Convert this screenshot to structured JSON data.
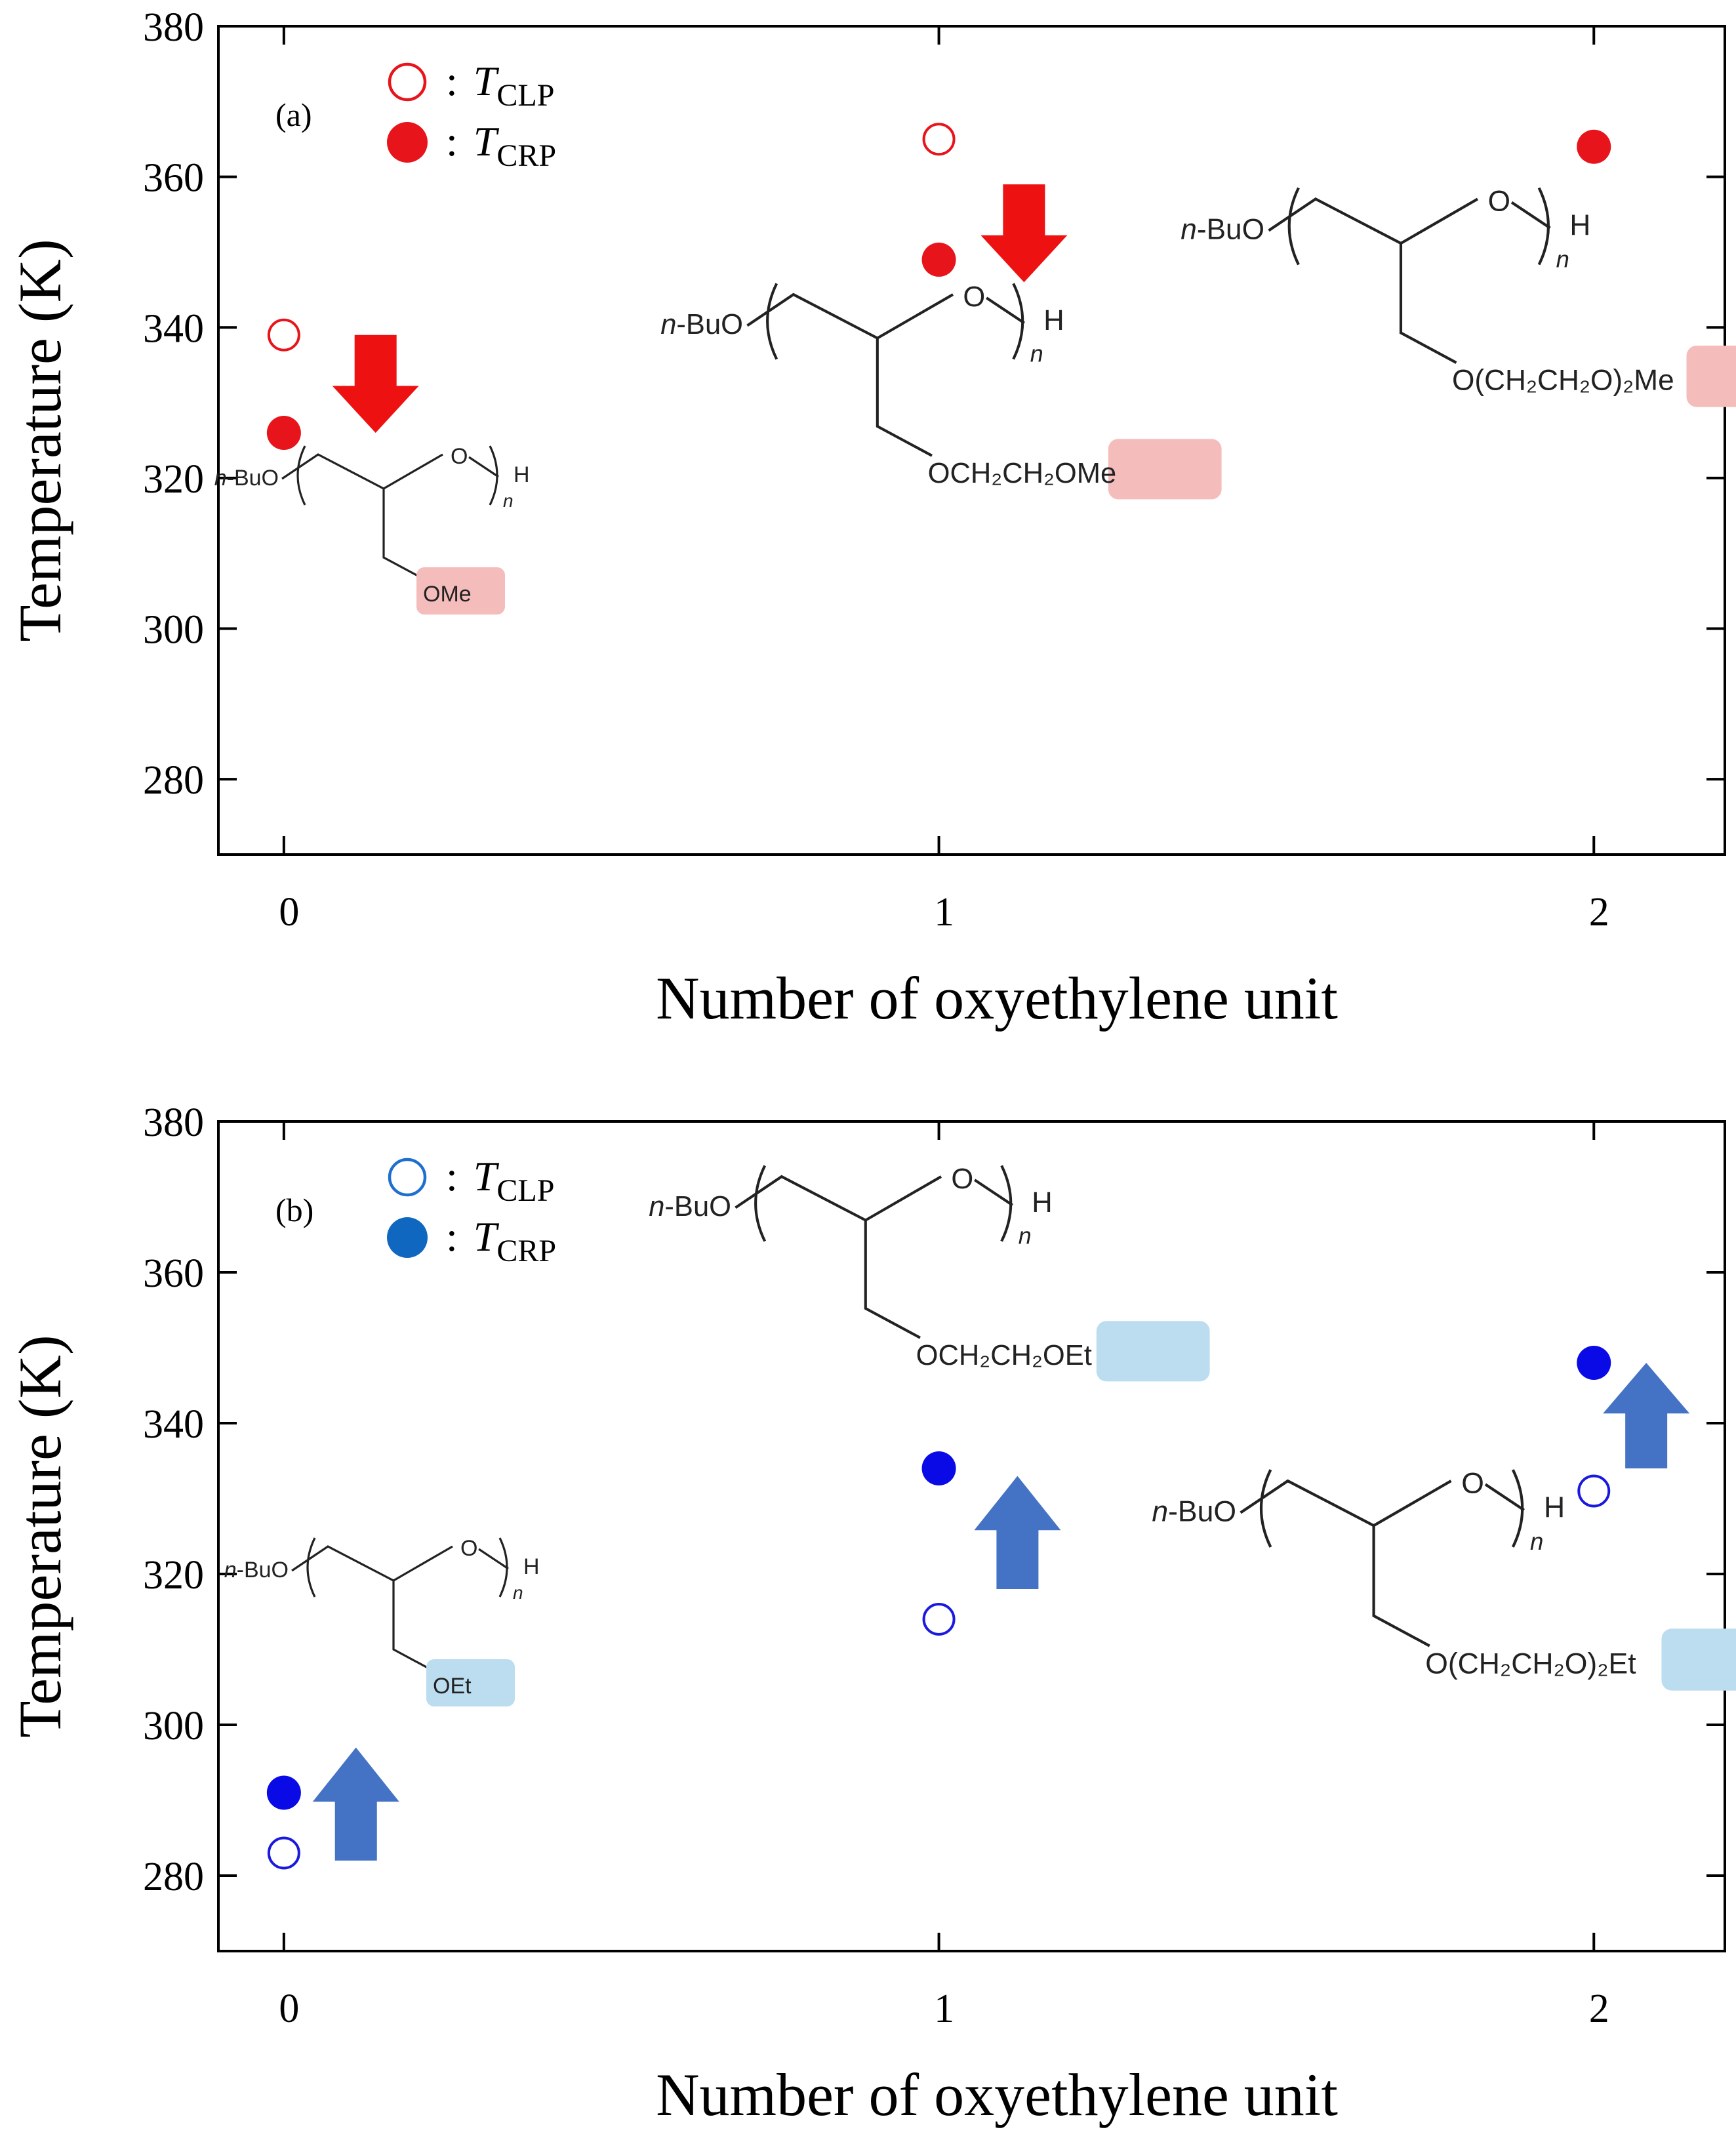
{
  "chart_data": [
    {
      "type": "scatter",
      "panel_label": "(a)",
      "xlabel": "Number of oxyethylene unit",
      "ylabel": "Temperature (K)",
      "xlim": [
        -0.1,
        2.2
      ],
      "ylim": [
        270,
        380
      ],
      "x_ticks": [
        "0",
        "1",
        "2"
      ],
      "y_ticks": [
        "280",
        "300",
        "320",
        "340",
        "360",
        "380"
      ],
      "legend": [
        {
          "marker": "open",
          "sep": ":",
          "symbol": "T",
          "sub": "CLP"
        },
        {
          "marker": "filled",
          "sep": ":",
          "symbol": "T",
          "sub": "CRP"
        }
      ],
      "series": [
        {
          "name": "T_CLP",
          "marker": "open",
          "color": "#e8141b",
          "x": [
            0,
            1
          ],
          "y": [
            339,
            365
          ]
        },
        {
          "name": "T_CRP",
          "marker": "filled",
          "color": "#e8141b",
          "x": [
            0,
            1,
            2
          ],
          "y": [
            326,
            349,
            364
          ]
        }
      ],
      "arrows": [
        {
          "x": 0.14,
          "y_top": 339,
          "y_bottom": 326,
          "direction": "down",
          "color": "#ee1111"
        },
        {
          "x": 1.13,
          "y_top": 359,
          "y_bottom": 346,
          "direction": "down",
          "color": "#ee1111"
        }
      ],
      "structures": [
        {
          "x": 0,
          "prefix": "n",
          "prefix_rest": "-BuO",
          "ring_o": "O",
          "end_h": "H",
          "repeat": "n",
          "side_chain": "OMe",
          "highlight": "#f5bcbc"
        },
        {
          "x": 1,
          "prefix": "n",
          "prefix_rest": "-BuO",
          "ring_o": "O",
          "end_h": "H",
          "repeat": "n",
          "side_chain": "OCH₂CH₂OMe",
          "highlight": "#f5bcbc"
        },
        {
          "x": 2,
          "prefix": "n",
          "prefix_rest": "-BuO",
          "ring_o": "O",
          "end_h": "H",
          "repeat": "n",
          "side_chain": "O(CH₂CH₂O)₂Me",
          "highlight": "#f5bcbc"
        }
      ]
    },
    {
      "type": "scatter",
      "panel_label": "(b)",
      "xlabel": "Number of oxyethylene unit",
      "ylabel": "Temperature (K)",
      "xlim": [
        -0.1,
        2.2
      ],
      "ylim": [
        270,
        380
      ],
      "x_ticks": [
        "0",
        "1",
        "2"
      ],
      "y_ticks": [
        "280",
        "300",
        "320",
        "340",
        "360",
        "380"
      ],
      "legend": [
        {
          "marker": "open",
          "sep": ":",
          "symbol": "T",
          "sub": "CLP",
          "color": "#1f6fd0"
        },
        {
          "marker": "filled",
          "sep": ":",
          "symbol": "T",
          "sub": "CRP",
          "color": "#1067c0"
        }
      ],
      "series": [
        {
          "name": "T_CLP",
          "marker": "open",
          "color": "#1a1adf",
          "x": [
            0,
            1,
            2
          ],
          "y": [
            283,
            314,
            331
          ]
        },
        {
          "name": "T_CRP",
          "marker": "filled",
          "color": "#0a0ae6",
          "x": [
            0,
            1,
            2
          ],
          "y": [
            291,
            334,
            348
          ]
        }
      ],
      "arrows": [
        {
          "x": 0.11,
          "y_top": 297,
          "y_bottom": 282,
          "direction": "up",
          "color": "#4472c4"
        },
        {
          "x": 1.12,
          "y_top": 333,
          "y_bottom": 318,
          "direction": "up",
          "color": "#4472c4"
        },
        {
          "x": 2.08,
          "y_top": 348,
          "y_bottom": 334,
          "direction": "up",
          "color": "#4472c4"
        }
      ],
      "structures": [
        {
          "x": 0,
          "prefix": "n",
          "prefix_rest": "-BuO",
          "ring_o": "O",
          "end_h": "H",
          "repeat": "n",
          "side_chain": "OEt",
          "highlight": "#bcdcef"
        },
        {
          "x": 1,
          "prefix": "n",
          "prefix_rest": "-BuO",
          "ring_o": "O",
          "end_h": "H",
          "repeat": "n",
          "side_chain": "OCH₂CH₂OEt",
          "highlight": "#bcdcef"
        },
        {
          "x": 2,
          "prefix": "n",
          "prefix_rest": "-BuO",
          "ring_o": "O",
          "end_h": "H",
          "repeat": "n",
          "side_chain": "O(CH₂CH₂O)₂Et",
          "highlight": "#bcdcef"
        }
      ]
    }
  ]
}
